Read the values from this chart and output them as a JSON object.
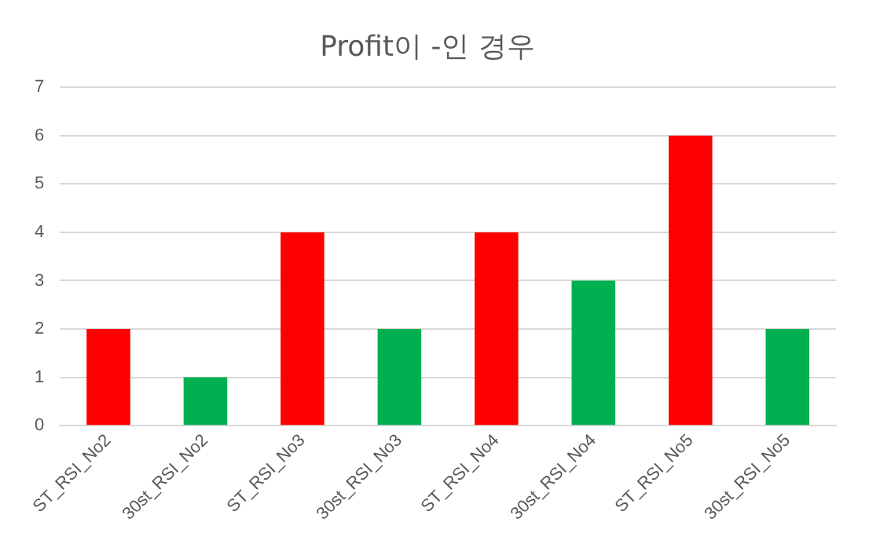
{
  "chart_data": {
    "type": "bar",
    "title": "Profit이 -인 경우",
    "categories": [
      "ST_RSI_No2",
      "30st_RSI_No2",
      "ST_RSI_No3",
      "30st_RSI_No3",
      "ST_RSI_No4",
      "30st_RSI_No4",
      "ST_RSI_No5",
      "30st_RSI_No5"
    ],
    "values": [
      2,
      1,
      4,
      2,
      4,
      3,
      6,
      2
    ],
    "colors": [
      "#ff0000",
      "#00b050",
      "#ff0000",
      "#00b050",
      "#ff0000",
      "#00b050",
      "#ff0000",
      "#00b050"
    ],
    "ylim": [
      0,
      7
    ],
    "yticks": [
      0,
      1,
      2,
      3,
      4,
      5,
      6,
      7
    ],
    "grid": "y",
    "legend": false
  }
}
